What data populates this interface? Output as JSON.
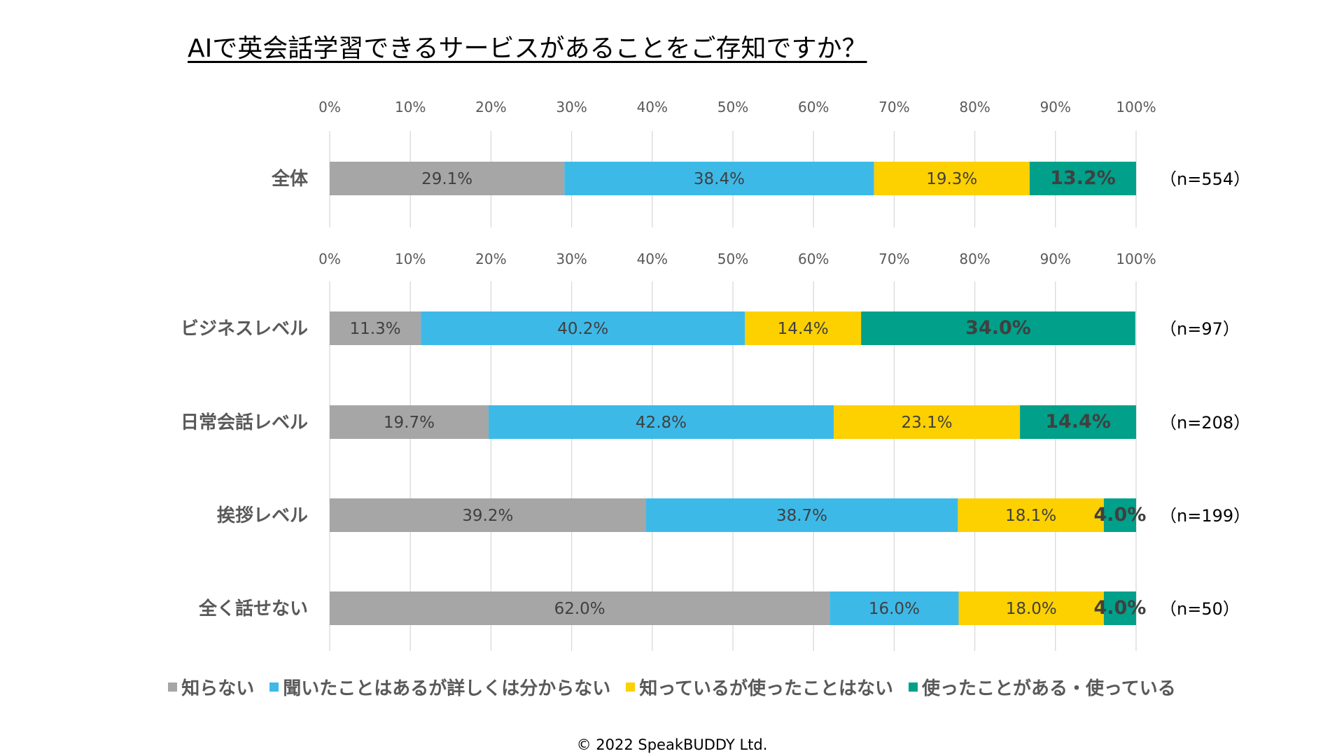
{
  "title": "AIで英会話学習できるサービスがあることをご存知ですか？",
  "footer": "© 2022 SpeakBUDDY Ltd.",
  "colors": {
    "unknown": "#a6a6a6",
    "heard": "#3db9e8",
    "known_unused": "#fdd000",
    "used": "#00a08a",
    "grid": "#d9d9d9"
  },
  "chart_data": [
    {
      "type": "bar",
      "orientation": "horizontal-stacked-100",
      "title": "AIで英会話学習できるサービスがあることをご存知ですか？",
      "xlim": [
        0,
        100
      ],
      "tick_labels": [
        "0%",
        "10%",
        "20%",
        "30%",
        "40%",
        "50%",
        "60%",
        "70%",
        "80%",
        "90%",
        "100%"
      ],
      "categories": [
        "全体"
      ],
      "sample_sizes": [
        "（n=554）"
      ],
      "series": [
        {
          "name": "知らない",
          "values": [
            29.1
          ],
          "labels": [
            "29.1%"
          ]
        },
        {
          "name": "聞いたことはあるが詳しくは分からない",
          "values": [
            38.4
          ],
          "labels": [
            "38.4%"
          ]
        },
        {
          "name": "知っているが使ったことはない",
          "values": [
            19.3
          ],
          "labels": [
            "19.3%"
          ]
        },
        {
          "name": "使ったことがある・使っている",
          "values": [
            13.2
          ],
          "labels": [
            "13.2%"
          ]
        }
      ]
    },
    {
      "type": "bar",
      "orientation": "horizontal-stacked-100",
      "xlim": [
        0,
        100
      ],
      "tick_labels": [
        "0%",
        "10%",
        "20%",
        "30%",
        "40%",
        "50%",
        "60%",
        "70%",
        "80%",
        "90%",
        "100%"
      ],
      "categories": [
        "ビジネスレベル",
        "日常会話レベル",
        "挨拶レベル",
        "全く話せない"
      ],
      "sample_sizes": [
        "（n=97）",
        "（n=208）",
        "（n=199）",
        "（n=50）"
      ],
      "series": [
        {
          "name": "知らない",
          "values": [
            11.3,
            19.7,
            39.2,
            62.0
          ],
          "labels": [
            "11.3%",
            "19.7%",
            "39.2%",
            "62.0%"
          ]
        },
        {
          "name": "聞いたことはあるが詳しくは分からない",
          "values": [
            40.2,
            42.8,
            38.7,
            16.0
          ],
          "labels": [
            "40.2%",
            "42.8%",
            "38.7%",
            "16.0%"
          ]
        },
        {
          "name": "知っているが使ったことはない",
          "values": [
            14.4,
            23.1,
            18.1,
            18.0
          ],
          "labels": [
            "14.4%",
            "23.1%",
            "18.1%",
            "18.0%"
          ]
        },
        {
          "name": "使ったことがある・使っている",
          "values": [
            34.0,
            14.4,
            4.0,
            4.0
          ],
          "labels": [
            "34.0%",
            "14.4%",
            "4.0%",
            "4.0%"
          ]
        }
      ]
    }
  ],
  "legend": [
    {
      "label": "知らない",
      "color_key": "unknown"
    },
    {
      "label": "聞いたことはあるが詳しくは分からない",
      "color_key": "heard"
    },
    {
      "label": "知っているが使ったことはない",
      "color_key": "known_unused"
    },
    {
      "label": "使ったことがある・使っている",
      "color_key": "used"
    }
  ]
}
